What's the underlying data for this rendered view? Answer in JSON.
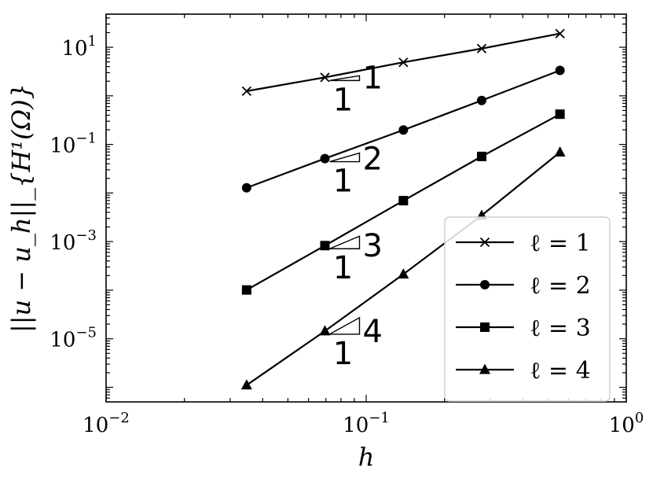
{
  "chart_data": {
    "type": "line",
    "xscale": "log",
    "yscale": "log",
    "xlim": [
      0.01,
      1
    ],
    "ylim": [
      5.01e-07,
      48
    ],
    "xlabel": "h",
    "ylabel": "||u − u_h||_{H¹(Ω)}",
    "x_ticks": [
      {
        "value": 0.01,
        "base": "10",
        "exp": "−2"
      },
      {
        "value": 0.1,
        "base": "10",
        "exp": "−1"
      },
      {
        "value": 1,
        "base": "10",
        "exp": "0"
      }
    ],
    "y_ticks": [
      {
        "value": 10,
        "base": "10",
        "exp": "1"
      },
      {
        "value": 0.1,
        "base": "10",
        "exp": "−1"
      },
      {
        "value": 0.001,
        "base": "10",
        "exp": "−3"
      },
      {
        "value": 1e-05,
        "base": "10",
        "exp": "−5"
      }
    ],
    "x": [
      0.0347,
      0.0694,
      0.139,
      0.278,
      0.556
    ],
    "series": [
      {
        "name": "ℓ = 1",
        "marker": "x",
        "values": [
          1.25,
          2.4,
          4.9,
          9.4,
          19.1
        ]
      },
      {
        "name": "ℓ = 2",
        "marker": "circle",
        "values": [
          0.0128,
          0.0512,
          0.198,
          0.804,
          3.34
        ]
      },
      {
        "name": "ℓ = 3",
        "marker": "square",
        "values": [
          0.000101,
          0.000827,
          0.00696,
          0.0566,
          0.419
        ]
      },
      {
        "name": "ℓ = 4",
        "marker": "triangle",
        "values": [
          1.11e-06,
          1.44e-05,
          0.000213,
          0.00346,
          0.0692
        ]
      }
    ],
    "slope_triangles": [
      {
        "rise": "1",
        "run": "1",
        "series": 0
      },
      {
        "rise": "2",
        "run": "1",
        "series": 1
      },
      {
        "rise": "3",
        "run": "1",
        "series": 2
      },
      {
        "rise": "4",
        "run": "1",
        "series": 3
      }
    ],
    "legend": {
      "placement": "lower-right"
    },
    "grid": false
  }
}
